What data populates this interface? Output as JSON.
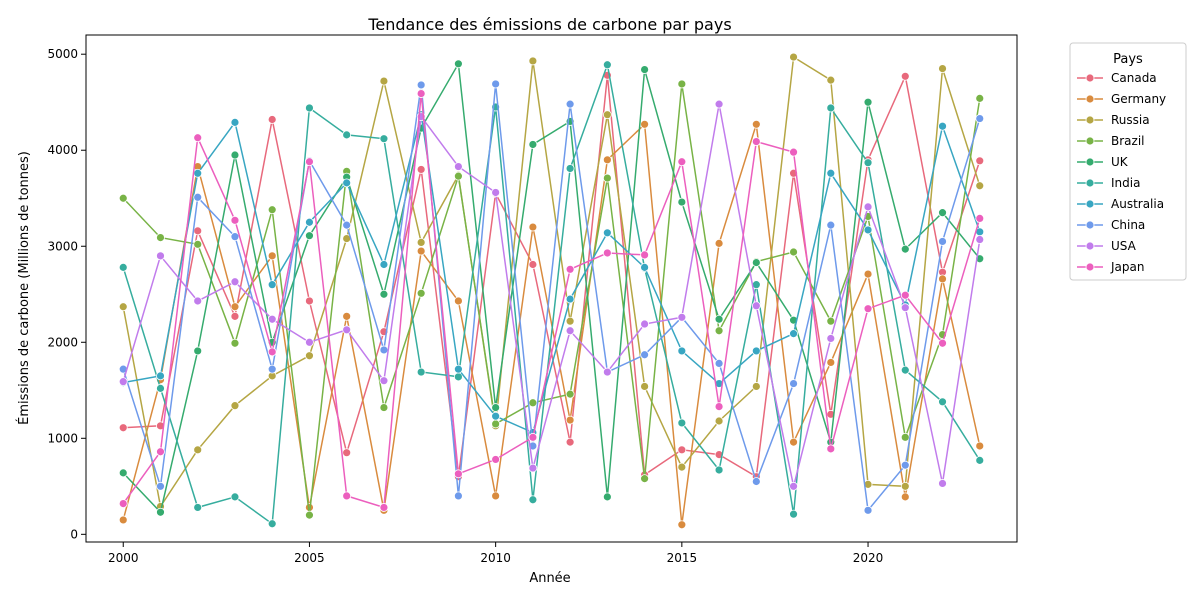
{
  "chart_data": {
    "type": "line",
    "title": "Tendance des émissions de carbone par pays",
    "xlabel": "Année",
    "ylabel": "Émissions de carbone (Millions de tonnes)",
    "xlim": [
      1999,
      2024
    ],
    "ylim": [
      -80,
      5200
    ],
    "x_ticks": [
      2000,
      2005,
      2010,
      2015,
      2020
    ],
    "y_ticks": [
      0,
      1000,
      2000,
      3000,
      4000,
      5000
    ],
    "legend_title": "Pays",
    "legend_position": "outside-right",
    "x": [
      2000,
      2001,
      2002,
      2003,
      2004,
      2005,
      2006,
      2007,
      2008,
      2009,
      2010,
      2011,
      2012,
      2013,
      2014,
      2015,
      2016,
      2017,
      2018,
      2019,
      2020,
      2021,
      2022,
      2023
    ],
    "series": [
      {
        "name": "Canada",
        "color": "#e8697c",
        "values": [
          1110,
          1130,
          3160,
          2270,
          4320,
          2430,
          850,
          2110,
          3800,
          600,
          3550,
          2810,
          960,
          4780,
          620,
          880,
          830,
          600,
          3760,
          1250,
          3900,
          4770,
          2730,
          3890
        ]
      },
      {
        "name": "Germany",
        "color": "#d98b3e",
        "values": [
          150,
          1610,
          3830,
          2370,
          2900,
          280,
          2270,
          250,
          2950,
          2430,
          400,
          3200,
          1190,
          3900,
          4270,
          100,
          3030,
          4270,
          960,
          1790,
          2710,
          390,
          2660,
          920
        ]
      },
      {
        "name": "Russia",
        "color": "#b5a644",
        "values": [
          2370,
          290,
          880,
          1340,
          1650,
          1860,
          3080,
          4720,
          3040,
          3740,
          1130,
          4930,
          2220,
          4370,
          1540,
          700,
          1180,
          1540,
          4970,
          4730,
          520,
          500,
          4850,
          3630
        ]
      },
      {
        "name": "Brazil",
        "color": "#78b346",
        "values": [
          3500,
          3090,
          3020,
          1990,
          3380,
          200,
          3780,
          1320,
          2510,
          3730,
          1150,
          1370,
          1460,
          3710,
          580,
          4690,
          2120,
          2840,
          2940,
          2220,
          3310,
          1010,
          2080,
          4540
        ]
      },
      {
        "name": "UK",
        "color": "#35ab6e",
        "values": [
          640,
          230,
          1910,
          3950,
          2000,
          3110,
          3720,
          2500,
          4230,
          4900,
          1320,
          4060,
          4300,
          390,
          4840,
          3460,
          2240,
          2830,
          2230,
          960,
          4500,
          2970,
          3350,
          2870
        ]
      },
      {
        "name": "India",
        "color": "#36ad9e",
        "values": [
          2780,
          1520,
          280,
          390,
          110,
          4440,
          4160,
          4120,
          1690,
          1640,
          4450,
          360,
          3810,
          4890,
          2770,
          1160,
          670,
          2600,
          210,
          4440,
          3870,
          1710,
          1380,
          770
        ]
      },
      {
        "name": "Australia",
        "color": "#38a6c2",
        "values": [
          1580,
          1650,
          3760,
          4290,
          2600,
          3250,
          3660,
          2810,
          4370,
          1720,
          1230,
          1060,
          2450,
          3140,
          2780,
          1910,
          1570,
          1910,
          2090,
          3760,
          3170,
          2390,
          4250,
          3150
        ]
      },
      {
        "name": "China",
        "color": "#6e9aeb",
        "values": [
          1720,
          500,
          3510,
          3100,
          1720,
          3890,
          3220,
          1920,
          4680,
          400,
          4690,
          920,
          4480,
          1690,
          1870,
          2260,
          1780,
          550,
          1570,
          3220,
          250,
          720,
          3050,
          4330
        ]
      },
      {
        "name": "USA",
        "color": "#c17cec",
        "values": [
          1590,
          2900,
          2430,
          2630,
          2240,
          2000,
          2130,
          1600,
          4350,
          3830,
          3560,
          690,
          2120,
          1690,
          2190,
          2260,
          4480,
          2380,
          500,
          2040,
          3410,
          2360,
          530,
          3070
        ]
      },
      {
        "name": "Japan",
        "color": "#ec5fbe",
        "values": [
          320,
          860,
          4130,
          3270,
          1900,
          3880,
          400,
          280,
          4590,
          630,
          780,
          1010,
          2760,
          2930,
          2910,
          3880,
          1330,
          4090,
          3980,
          890,
          2350,
          2490,
          1990,
          3290
        ]
      }
    ]
  }
}
